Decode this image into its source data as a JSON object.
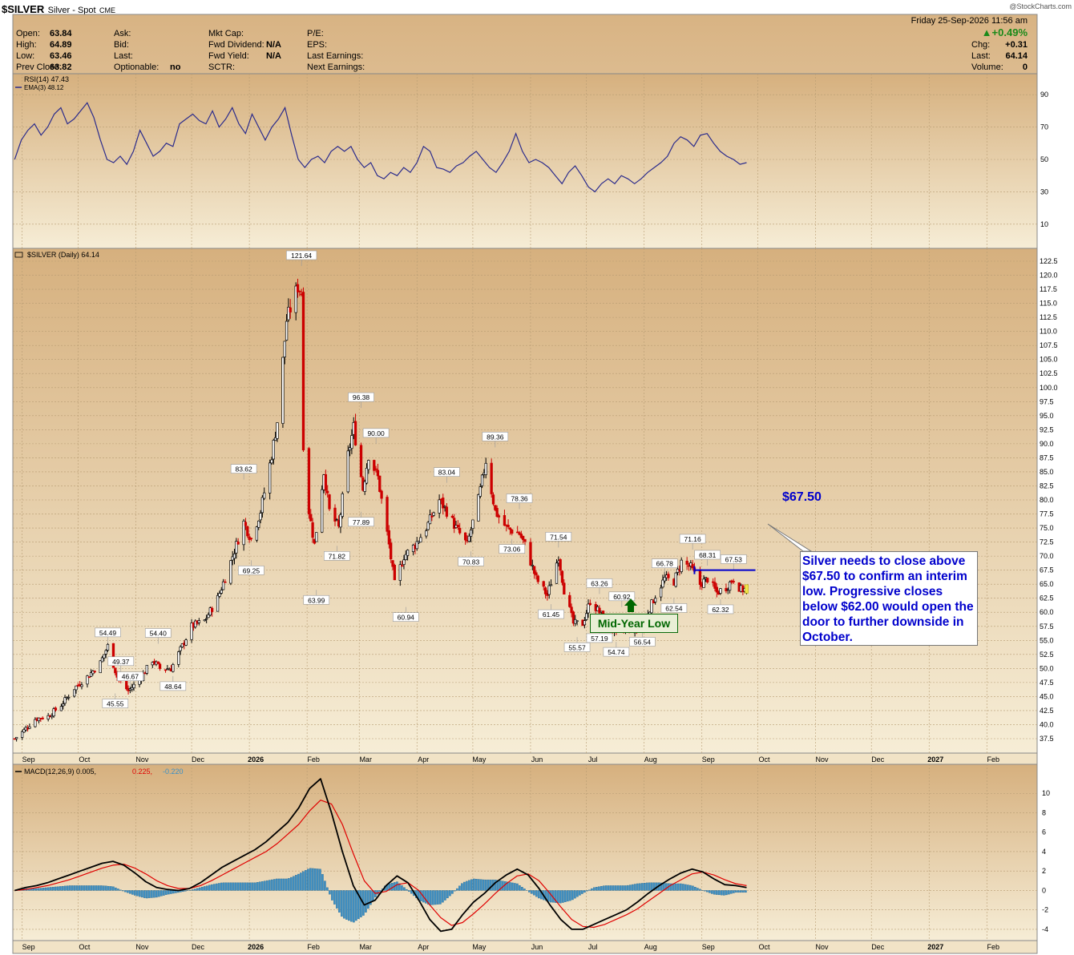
{
  "header": {
    "symbol": "$SILVER",
    "name": "Silver - Spot",
    "exchange": "CME",
    "watermark": "@StockCharts.com",
    "date": "Friday  25-Sep-2026 11:56 am",
    "quote_left": [
      {
        "label": "Open:",
        "value": "63.84"
      },
      {
        "label": "High:",
        "value": "64.89"
      },
      {
        "label": "Low:",
        "value": "63.46"
      },
      {
        "label": "Prev Close:",
        "value": "63.82"
      }
    ],
    "quote_mid": [
      {
        "label": "Ask:",
        "value": ""
      },
      {
        "label": "Bid:",
        "value": ""
      },
      {
        "label": "Last:",
        "value": ""
      },
      {
        "label": "Optionable:",
        "value": "no"
      }
    ],
    "quote_fund": [
      {
        "label": "Mkt Cap:",
        "value": ""
      },
      {
        "label": "Fwd Dividend:",
        "value": "N/A"
      },
      {
        "label": "Fwd Yield:",
        "value": "N/A"
      },
      {
        "label": "SCTR:",
        "value": ""
      }
    ],
    "quote_earn": [
      {
        "label": "P/E:"
      },
      {
        "label": "EPS:"
      },
      {
        "label": "Last Earnings:"
      },
      {
        "label": "Next Earnings:"
      }
    ],
    "change_pct": "+0.49%",
    "quote_right": [
      {
        "label": "Chg:",
        "value": "+0.31"
      },
      {
        "label": "Last:",
        "value": "64.14"
      },
      {
        "label": "Volume:",
        "value": "0"
      }
    ]
  },
  "colors": {
    "up": "#000000",
    "down": "#cc0000",
    "rsi_line": "#2b2b8c",
    "macd_line": "#000000",
    "signal_line": "#e00000",
    "histogram": "#3a8fc6",
    "annotation": "#0000cc",
    "mid_year_low": "#006600",
    "panel_top": "#d6b07e",
    "panel_bottom": "#f6edd6"
  },
  "x_axis_labels": [
    "Sep",
    "Oct",
    "Nov",
    "Dec",
    "2026",
    "Feb",
    "Mar",
    "Apr",
    "May",
    "Jun",
    "Jul",
    "Aug",
    "Sep",
    "Oct",
    "Nov",
    "Dec",
    "2027",
    "Feb"
  ],
  "chart_data": [
    {
      "type": "line",
      "panel": "RSI",
      "legend": [
        "RSI(14) 47.43",
        "EMA(3) 48.12"
      ],
      "ylim": [
        0,
        100
      ],
      "y_ticks": [
        10,
        30,
        50,
        70,
        90
      ],
      "reference_lines": [
        30,
        70
      ],
      "series": [
        {
          "name": "RSI(14)",
          "values": [
            50,
            62,
            68,
            72,
            65,
            70,
            78,
            82,
            72,
            75,
            80,
            85,
            76,
            62,
            50,
            48,
            52,
            47,
            55,
            68,
            60,
            52,
            55,
            60,
            58,
            72,
            75,
            78,
            74,
            72,
            80,
            70,
            75,
            82,
            72,
            66,
            78,
            70,
            62,
            70,
            75,
            82,
            65,
            50,
            45,
            50,
            52,
            48,
            55,
            58,
            55,
            58,
            50,
            45,
            48,
            40,
            38,
            42,
            40,
            45,
            42,
            48,
            58,
            55,
            45,
            44,
            42,
            46,
            48,
            52,
            55,
            50,
            45,
            42,
            48,
            55,
            66,
            55,
            48,
            50,
            48,
            45,
            40,
            35,
            42,
            46,
            40,
            33,
            30,
            35,
            38,
            35,
            40,
            38,
            35,
            38,
            42,
            45,
            48,
            52,
            60,
            64,
            62,
            58,
            65,
            66,
            60,
            55,
            52,
            50,
            47,
            48
          ]
        }
      ]
    },
    {
      "type": "candlestick",
      "panel": "Price",
      "legend": "$SILVER (Daily) 64.14",
      "x_range": [
        "2025-08-27",
        "2026-09-25"
      ],
      "ylim": [
        35,
        122.5
      ],
      "y_ticks": [
        37.5,
        40.0,
        42.5,
        45.0,
        47.5,
        50.0,
        52.5,
        55.0,
        57.5,
        60.0,
        62.5,
        65.0,
        67.5,
        70.0,
        72.5,
        75.0,
        77.5,
        80.0,
        82.5,
        85.0,
        87.5,
        90.0,
        92.5,
        95.0,
        97.5,
        100.0,
        102.5,
        105.0,
        107.5,
        110.0,
        112.5,
        115.0,
        117.5,
        120.0,
        122.5
      ],
      "close_path": [
        [
          "2025-08-28",
          37.5
        ],
        [
          "2025-09-02",
          39.0
        ],
        [
          "2025-09-08",
          41.0
        ],
        [
          "2025-09-15",
          41.5
        ],
        [
          "2025-09-22",
          43.5
        ],
        [
          "2025-09-29",
          46.5
        ],
        [
          "2025-10-06",
          48.5
        ],
        [
          "2025-10-13",
          51.0
        ],
        [
          "2025-10-17",
          54.0
        ],
        [
          "2025-10-22",
          48.5
        ],
        [
          "2025-10-28",
          46.0
        ],
        [
          "2025-11-03",
          48.0
        ],
        [
          "2025-11-10",
          51.5
        ],
        [
          "2025-11-14",
          50.0
        ],
        [
          "2025-11-20",
          50.0
        ],
        [
          "2025-11-26",
          54.0
        ],
        [
          "2025-12-01",
          57.5
        ],
        [
          "2025-12-08",
          58.5
        ],
        [
          "2025-12-15",
          62.5
        ],
        [
          "2025-12-22",
          69.0
        ],
        [
          "2025-12-29",
          76.0
        ],
        [
          "2026-01-02",
          73.0
        ],
        [
          "2026-01-07",
          78.0
        ],
        [
          "2026-01-13",
          88.0
        ],
        [
          "2026-01-16",
          94.0
        ],
        [
          "2026-01-21",
          112.0
        ],
        [
          "2026-01-27",
          118.0
        ],
        [
          "2026-01-29",
          117.0
        ],
        [
          "2026-01-30",
          90.0
        ],
        [
          "2026-02-02",
          78.0
        ],
        [
          "2026-02-05",
          72.0
        ],
        [
          "2026-02-10",
          85.0
        ],
        [
          "2026-02-13",
          78.0
        ],
        [
          "2026-02-18",
          75.0
        ],
        [
          "2026-02-23",
          88.0
        ],
        [
          "2026-02-26",
          93.0
        ],
        [
          "2026-03-03",
          82.0
        ],
        [
          "2026-03-06",
          88.0
        ],
        [
          "2026-03-11",
          84.0
        ],
        [
          "2026-03-17",
          72.0
        ],
        [
          "2026-03-20",
          65.0
        ],
        [
          "2026-03-25",
          70.0
        ],
        [
          "2026-03-31",
          72.0
        ],
        [
          "2026-04-06",
          75.0
        ],
        [
          "2026-04-13",
          80.0
        ],
        [
          "2026-04-17",
          78.0
        ],
        [
          "2026-04-22",
          75.0
        ],
        [
          "2026-04-28",
          72.0
        ],
        [
          "2026-05-04",
          80.0
        ],
        [
          "2026-05-08",
          87.0
        ],
        [
          "2026-05-13",
          78.0
        ],
        [
          "2026-05-19",
          75.0
        ],
        [
          "2026-05-26",
          74.0
        ],
        [
          "2026-05-29",
          72.0
        ],
        [
          "2026-06-04",
          66.0
        ],
        [
          "2026-06-10",
          63.0
        ],
        [
          "2026-06-16",
          70.0
        ],
        [
          "2026-06-19",
          64.0
        ],
        [
          "2026-06-24",
          58.0
        ],
        [
          "2026-06-29",
          58.0
        ],
        [
          "2026-07-03",
          62.0
        ],
        [
          "2026-07-08",
          60.0
        ],
        [
          "2026-07-14",
          57.5
        ],
        [
          "2026-07-17",
          56.0
        ],
        [
          "2026-07-22",
          57.0
        ],
        [
          "2026-07-28",
          57.0
        ],
        [
          "2026-08-03",
          60.0
        ],
        [
          "2026-08-07",
          63.0
        ],
        [
          "2026-08-12",
          66.0
        ],
        [
          "2026-08-17",
          65.5
        ],
        [
          "2026-08-21",
          69.0
        ],
        [
          "2026-08-26",
          68.0
        ],
        [
          "2026-08-31",
          65.0
        ],
        [
          "2026-09-04",
          66.0
        ],
        [
          "2026-09-09",
          63.5
        ],
        [
          "2026-09-14",
          64.5
        ],
        [
          "2026-09-18",
          66.0
        ],
        [
          "2026-09-22",
          64.0
        ],
        [
          "2026-09-25",
          64.14
        ]
      ],
      "data_labels": [
        {
          "date": "2025-10-17",
          "value": 54.49,
          "label": "54.49"
        },
        {
          "date": "2025-10-24",
          "value": 49.37,
          "label": "49.37"
        },
        {
          "date": "2025-10-21",
          "value": 45.55,
          "label": "45.55"
        },
        {
          "date": "2025-10-29",
          "value": 46.67,
          "label": "46.67"
        },
        {
          "date": "2025-11-13",
          "value": 54.4,
          "label": "54.40"
        },
        {
          "date": "2025-11-21",
          "value": 48.64,
          "label": "48.64"
        },
        {
          "date": "2025-12-29",
          "value": 83.62,
          "label": "83.62"
        },
        {
          "date": "2026-01-02",
          "value": 69.25,
          "label": "69.25"
        },
        {
          "date": "2026-01-29",
          "value": 121.64,
          "label": "121.64"
        },
        {
          "date": "2026-02-06",
          "value": 63.99,
          "label": "63.99"
        },
        {
          "date": "2026-02-17",
          "value": 71.82,
          "label": "71.82"
        },
        {
          "date": "2026-03-02",
          "value": 96.38,
          "label": "96.38"
        },
        {
          "date": "2026-03-02",
          "value": 77.89,
          "label": "77.89"
        },
        {
          "date": "2026-03-10",
          "value": 90.0,
          "label": "90.00"
        },
        {
          "date": "2026-03-26",
          "value": 60.94,
          "label": "60.94"
        },
        {
          "date": "2026-04-17",
          "value": 83.04,
          "label": "83.04"
        },
        {
          "date": "2026-04-30",
          "value": 70.83,
          "label": "70.83"
        },
        {
          "date": "2026-05-13",
          "value": 89.36,
          "label": "89.36"
        },
        {
          "date": "2026-05-22",
          "value": 73.06,
          "label": "73.06"
        },
        {
          "date": "2026-05-26",
          "value": 78.36,
          "label": "78.36"
        },
        {
          "date": "2026-06-16",
          "value": 71.54,
          "label": "71.54"
        },
        {
          "date": "2026-06-12",
          "value": 61.45,
          "label": "61.45"
        },
        {
          "date": "2026-06-26",
          "value": 55.57,
          "label": "55.57"
        },
        {
          "date": "2026-07-08",
          "value": 63.26,
          "label": "63.26"
        },
        {
          "date": "2026-07-08",
          "value": 57.19,
          "label": "57.19"
        },
        {
          "date": "2026-07-17",
          "value": 54.74,
          "label": "54.74"
        },
        {
          "date": "2026-07-20",
          "value": 60.92,
          "label": "60.92"
        },
        {
          "date": "2026-07-31",
          "value": 56.54,
          "label": "56.54"
        },
        {
          "date": "2026-08-12",
          "value": 66.78,
          "label": "66.78"
        },
        {
          "date": "2026-08-17",
          "value": 62.54,
          "label": "62.54"
        },
        {
          "date": "2026-08-27",
          "value": 71.16,
          "label": "71.16"
        },
        {
          "date": "2026-09-04",
          "value": 68.31,
          "label": "68.31"
        },
        {
          "date": "2026-09-11",
          "value": 62.32,
          "label": "62.32"
        },
        {
          "date": "2026-09-18",
          "value": 67.53,
          "label": "67.53"
        }
      ],
      "annotations": {
        "level_value": 67.5,
        "level_label": "$67.50",
        "level_start": "2026-08-28",
        "level_end": "2026-09-22",
        "mid_year_low_label": "Mid-Year Low",
        "mid_year_low_date": "2026-07-17",
        "note": "Silver needs to close above $67.50 to confirm an interim low. Progressive closes below $62.00 would open the door to further downside in October."
      }
    },
    {
      "type": "line",
      "panel": "MACD",
      "legend": [
        "MACD(12,26,9) 0.005,",
        "0.225,",
        "-0.220"
      ],
      "ylim": [
        -4.5,
        12
      ],
      "y_ticks": [
        -4,
        -2,
        0,
        2,
        4,
        6,
        8,
        10
      ],
      "series": [
        {
          "name": "MACD(12,26,9)",
          "values": [
            0.0,
            0.3,
            0.5,
            0.8,
            1.2,
            1.6,
            2.0,
            2.4,
            2.8,
            3.0,
            2.6,
            1.8,
            0.9,
            0.3,
            0.1,
            0.0,
            0.2,
            0.8,
            1.6,
            2.4,
            3.0,
            3.6,
            4.2,
            5.0,
            6.0,
            7.0,
            8.5,
            10.5,
            11.5,
            8.0,
            4.0,
            0.5,
            -1.5,
            -1.0,
            0.5,
            1.5,
            0.8,
            -1.0,
            -3.0,
            -4.2,
            -4.0,
            -2.5,
            -1.2,
            -0.3,
            0.8,
            1.6,
            2.2,
            1.6,
            0.2,
            -1.5,
            -3.0,
            -4.0,
            -4.0,
            -3.5,
            -3.0,
            -2.5,
            -2.0,
            -1.2,
            -0.3,
            0.5,
            1.2,
            1.8,
            2.2,
            1.9,
            1.2,
            0.6,
            0.5,
            0.3
          ]
        },
        {
          "name": "Signal",
          "values": [
            0.0,
            0.1,
            0.3,
            0.5,
            0.8,
            1.1,
            1.5,
            1.9,
            2.3,
            2.6,
            2.7,
            2.3,
            1.7,
            1.0,
            0.5,
            0.2,
            0.2,
            0.5,
            1.0,
            1.6,
            2.2,
            2.8,
            3.4,
            4.0,
            4.8,
            5.8,
            6.8,
            8.2,
            9.3,
            8.9,
            6.8,
            3.8,
            1.0,
            -0.3,
            -0.1,
            0.6,
            0.8,
            0.0,
            -1.5,
            -2.8,
            -3.6,
            -3.3,
            -2.4,
            -1.4,
            -0.3,
            0.7,
            1.5,
            1.7,
            1.0,
            -0.3,
            -1.7,
            -3.0,
            -3.7,
            -3.8,
            -3.5,
            -3.0,
            -2.5,
            -1.9,
            -1.1,
            -0.3,
            0.5,
            1.1,
            1.7,
            1.9,
            1.6,
            1.1,
            0.7,
            0.5
          ]
        }
      ]
    }
  ]
}
